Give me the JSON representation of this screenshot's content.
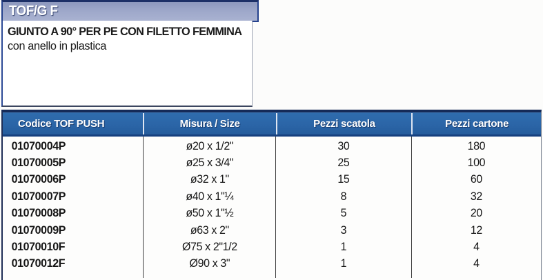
{
  "title": "TOF/G F",
  "description": {
    "line1": "GIUNTO A 90° PER PE CON FILETTO FEMMINA",
    "line2": "con anello in plastica"
  },
  "colors": {
    "header_blue": "#2b65a7",
    "title_bar_fill": "#9da7c9",
    "border_navy": "#24418d",
    "table_top_border": "#152a58"
  },
  "table": {
    "columns": [
      {
        "key": "codice",
        "label": "Codice TOF PUSH",
        "align": "left"
      },
      {
        "key": "misura",
        "label": "Misura / Size",
        "align": "center"
      },
      {
        "key": "scatola",
        "label": "Pezzi scatola",
        "align": "center"
      },
      {
        "key": "cartone",
        "label": "Pezzi cartone",
        "align": "center"
      }
    ],
    "rows": [
      {
        "codice": "01070004P",
        "misura": "ø20 x 1/2\"",
        "scatola": "30",
        "cartone": "180"
      },
      {
        "codice": "01070005P",
        "misura": "ø25 x 3/4\"",
        "scatola": "25",
        "cartone": "100"
      },
      {
        "codice": "01070006P",
        "misura": "ø32 x 1\"",
        "scatola": "15",
        "cartone": "60"
      },
      {
        "codice": "01070007P",
        "misura": "ø40 x 1\"¼",
        "scatola": "8",
        "cartone": "32"
      },
      {
        "codice": "01070008P",
        "misura": "ø50 x 1\"½",
        "scatola": "5",
        "cartone": "20"
      },
      {
        "codice": "01070009P",
        "misura": "ø63 x 2\"",
        "scatola": "3",
        "cartone": "12"
      },
      {
        "codice": "01070010F",
        "misura": "Ø75 x 2\"1/2",
        "scatola": "1",
        "cartone": "4"
      },
      {
        "codice": "01070012F",
        "misura": "Ø90 x 3\"",
        "scatola": "1",
        "cartone": "4"
      }
    ]
  }
}
